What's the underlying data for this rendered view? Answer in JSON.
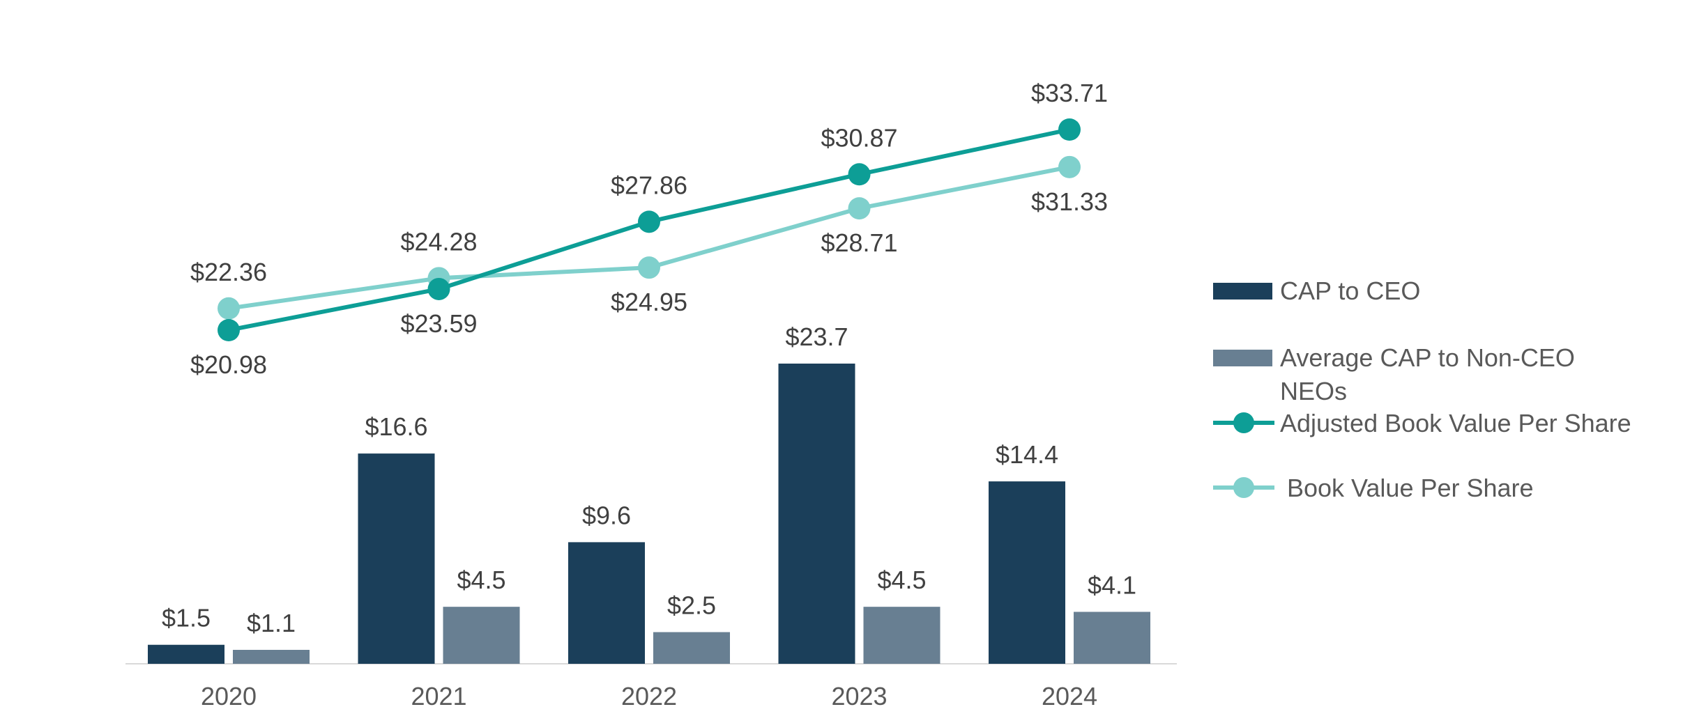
{
  "chart_data": {
    "type": "bar",
    "categories": [
      "2020",
      "2021",
      "2022",
      "2023",
      "2024"
    ],
    "bar_series": [
      {
        "name": "CAP to CEO",
        "values": [
          1.5,
          16.6,
          9.6,
          23.7,
          14.4
        ],
        "labels": [
          "$1.5",
          "$16.6",
          "$9.6",
          "$23.7",
          "$14.4"
        ],
        "color": "#1b3f5a"
      },
      {
        "name": "Average CAP to Non-CEO NEOs",
        "name_lines": [
          "Average CAP to Non-CEO",
          "NEOs"
        ],
        "values": [
          1.1,
          4.5,
          2.5,
          4.5,
          4.1
        ],
        "labels": [
          "$1.1",
          "$4.5",
          "$2.5",
          "$4.5",
          "$4.1"
        ],
        "color": "#687f92"
      }
    ],
    "line_series": [
      {
        "name": "Adjusted Book Value Per Share",
        "values": [
          20.98,
          23.59,
          27.86,
          30.87,
          33.71
        ],
        "labels": [
          "$20.98",
          "$23.59",
          "$27.86",
          "$30.87",
          "$33.71"
        ],
        "label_side": [
          "below",
          "below",
          "above",
          "above",
          "above"
        ],
        "color": "#0d9e96"
      },
      {
        "name": "Book Value Per Share",
        "values": [
          22.36,
          24.28,
          24.95,
          28.71,
          31.33
        ],
        "labels": [
          "$22.36",
          "$24.28",
          "$24.95",
          "$28.71",
          "$31.33"
        ],
        "label_side": [
          "above",
          "above",
          "below",
          "below",
          "below"
        ],
        "color": "#7fd0cc"
      }
    ],
    "bar_ylim": [
      0,
      25
    ],
    "line_ylim": [
      12,
      36
    ],
    "legend_position": "right",
    "grid": false,
    "baseline_color": "#d9d9d9"
  }
}
